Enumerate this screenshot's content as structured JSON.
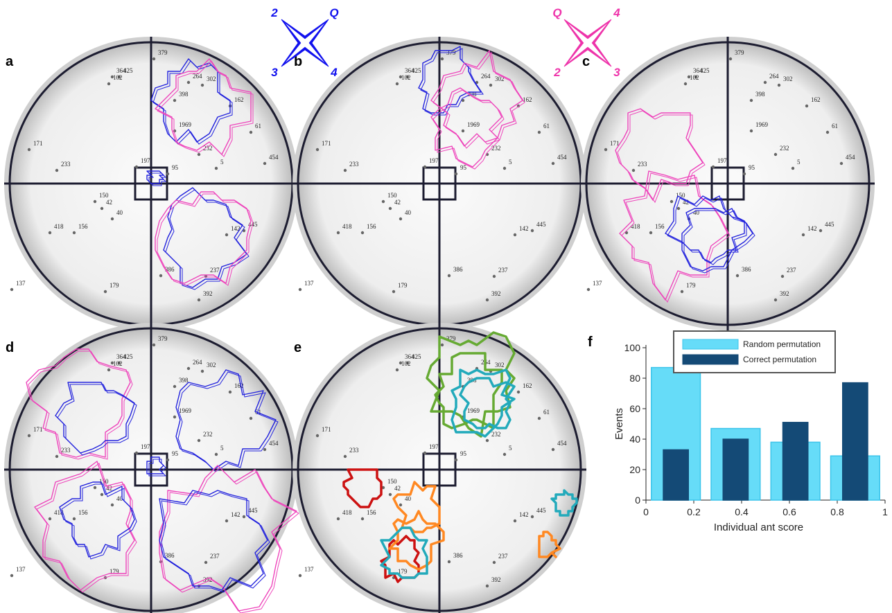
{
  "figure": {
    "panel_labels": [
      "a",
      "b",
      "c",
      "d",
      "e",
      "f"
    ],
    "compass_blue": [
      "2",
      "Q",
      "3",
      "4"
    ],
    "compass_pink": [
      "Q",
      "4",
      "2",
      "3"
    ],
    "ant_labels": [
      "379",
      "364",
      "425",
      "102",
      "264",
      "302",
      "398",
      "162",
      "61",
      "171",
      "1969",
      "233",
      "197",
      "232",
      "5",
      "454",
      "150",
      "42",
      "40",
      "418",
      "156",
      "142",
      "445",
      "95",
      "137",
      "179",
      "386",
      "237",
      "392"
    ]
  },
  "chart_data": {
    "type": "bar",
    "x": [
      0.125,
      0.375,
      0.625,
      0.875
    ],
    "series": [
      {
        "name": "Random permutation",
        "color": "#66dcf8",
        "values": [
          87,
          47,
          38,
          29
        ]
      },
      {
        "name": "Correct permutation",
        "color": "#144a76",
        "values": [
          33,
          40,
          51,
          77
        ]
      }
    ],
    "xlabel": "Individual ant score",
    "ylabel": "Events",
    "xlim": [
      0,
      1
    ],
    "ylim": [
      0,
      100
    ],
    "xticks": [
      0,
      0.2,
      0.4,
      0.6,
      0.8,
      1
    ],
    "yticks": [
      0,
      20,
      40,
      60,
      80,
      100
    ]
  }
}
